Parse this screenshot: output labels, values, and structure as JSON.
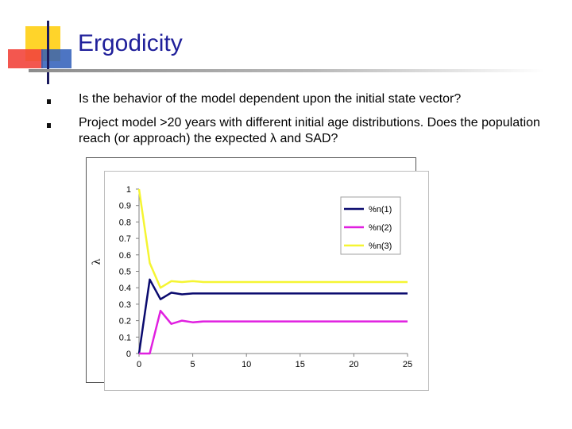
{
  "slide": {
    "title": "Ergodicity",
    "bullets": [
      "Is the behavior of the model dependent upon the initial state vector?",
      "Project model >20 years with different initial age distributions.  Does the population reach (or approach) the expected λ and SAD?"
    ],
    "bullet_icon": "square-bullet-icon",
    "accent_colors": {
      "yellow": "#ffd42a",
      "red": "#f2453c",
      "blue": "#2e5db8",
      "title": "#1f1f9a"
    }
  },
  "y_axis_symbol": "λ",
  "chart_data": {
    "type": "line",
    "title": "",
    "xlabel": "",
    "ylabel": "λ",
    "xlim": [
      0,
      25
    ],
    "ylim": [
      0,
      1
    ],
    "x_ticks": [
      "0",
      "5",
      "10",
      "15",
      "20",
      "25"
    ],
    "y_ticks": [
      "0",
      "0.1",
      "0.2",
      "0.3",
      "0.4",
      "0.5",
      "0.6",
      "0.7",
      "0.8",
      "0.9",
      "1"
    ],
    "x": [
      0,
      1,
      2,
      3,
      4,
      5,
      6,
      7,
      8,
      9,
      10,
      11,
      12,
      13,
      14,
      15,
      16,
      17,
      18,
      19,
      20,
      21,
      22,
      23,
      24,
      25
    ],
    "series": [
      {
        "name": "%n(1)",
        "color": "#0a0a6e",
        "values": [
          0,
          0.45,
          0.33,
          0.37,
          0.36,
          0.365,
          0.365,
          0.365,
          0.365,
          0.365,
          0.365,
          0.365,
          0.365,
          0.365,
          0.365,
          0.365,
          0.365,
          0.365,
          0.365,
          0.365,
          0.365,
          0.365,
          0.365,
          0.365,
          0.365,
          0.365
        ]
      },
      {
        "name": "%n(2)",
        "color": "#e020e0",
        "values": [
          0,
          0,
          0.26,
          0.18,
          0.2,
          0.19,
          0.195,
          0.195,
          0.195,
          0.195,
          0.195,
          0.195,
          0.195,
          0.195,
          0.195,
          0.195,
          0.195,
          0.195,
          0.195,
          0.195,
          0.195,
          0.195,
          0.195,
          0.195,
          0.195,
          0.195
        ]
      },
      {
        "name": "%n(3)",
        "color": "#f5f532",
        "values": [
          1,
          0.55,
          0.4,
          0.44,
          0.435,
          0.44,
          0.435,
          0.435,
          0.435,
          0.435,
          0.435,
          0.435,
          0.435,
          0.435,
          0.435,
          0.435,
          0.435,
          0.435,
          0.435,
          0.435,
          0.435,
          0.435,
          0.435,
          0.435,
          0.435,
          0.435
        ]
      }
    ],
    "grid": false,
    "legend_position": "top-right"
  }
}
